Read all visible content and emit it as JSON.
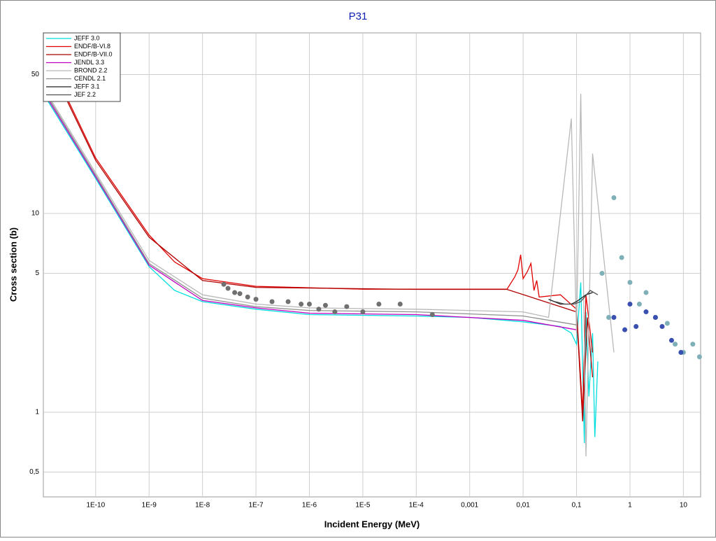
{
  "chart_data": {
    "type": "line",
    "title": "P31",
    "xlabel": "Incident Energy (MeV)",
    "ylabel": "Cross section (b)",
    "xlog": true,
    "ylog": true,
    "grid": true,
    "legend": "upper left",
    "xlim": [
      1.05e-11,
      21
    ],
    "ylim": [
      0.375,
      81
    ],
    "xticks": [
      {
        "value": 1e-10,
        "label": "1E-10"
      },
      {
        "value": 1e-09,
        "label": "1E-9"
      },
      {
        "value": 1e-08,
        "label": "1E-8"
      },
      {
        "value": 1e-07,
        "label": "1E-7"
      },
      {
        "value": 1e-06,
        "label": "1E-6"
      },
      {
        "value": 1e-05,
        "label": "1E-5"
      },
      {
        "value": 0.0001,
        "label": "1E-4"
      },
      {
        "value": 0.001,
        "label": "0,001"
      },
      {
        "value": 0.01,
        "label": "0,01"
      },
      {
        "value": 0.1,
        "label": "0,1"
      },
      1,
      10
    ],
    "yticks": [
      {
        "value": 0.5,
        "label": "0,5"
      },
      1,
      5,
      10,
      50
    ],
    "series": [
      {
        "name": "JEFF 3.0",
        "color": "#00dede",
        "x": [
          1.05e-11,
          1e-10,
          1e-09,
          3e-09,
          1e-08,
          1e-07,
          1e-06,
          0.0001,
          0.001,
          0.01,
          0.05,
          0.08,
          0.1,
          0.12,
          0.14,
          0.15,
          0.17,
          0.2,
          0.22,
          0.25
        ],
        "values": [
          40,
          15,
          5.4,
          4.1,
          3.6,
          3.3,
          3.1,
          3.05,
          3.0,
          2.85,
          2.7,
          2.5,
          2.2,
          4.5,
          0.7,
          3.2,
          1.2,
          2.5,
          0.75,
          1.8
        ]
      },
      {
        "name": "ENDF/B-VI.8",
        "color": "#e00000",
        "x": [
          1.3e-11,
          1e-10,
          1e-09,
          3e-09,
          1e-08,
          1e-07,
          1e-05,
          0.0001,
          0.005,
          0.007,
          0.008,
          0.009,
          0.01,
          0.012,
          0.014,
          0.016,
          0.018,
          0.02,
          0.05,
          0.1,
          0.13,
          0.15,
          0.2
        ],
        "values": [
          60,
          19,
          7.8,
          5.7,
          4.7,
          4.3,
          4.16,
          4.16,
          4.16,
          4.8,
          5.2,
          6.2,
          4.7,
          5.1,
          5.6,
          4.1,
          4.6,
          3.8,
          3.9,
          3.3,
          1.0,
          3.9,
          2.0
        ]
      },
      {
        "name": "ENDF/B-VII.0",
        "color": "#b00000",
        "x": [
          1.3e-11,
          1e-10,
          1e-09,
          1e-08,
          1e-07,
          0.0001,
          0.005,
          0.1,
          0.13,
          0.16,
          0.2
        ],
        "values": [
          58,
          18.5,
          7.6,
          4.6,
          4.25,
          4.15,
          4.15,
          3.2,
          0.9,
          3.0,
          1.5
        ]
      },
      {
        "name": "JENDL 3.3",
        "color": "#c000c0",
        "x": [
          1.05e-11,
          1e-10,
          1e-09,
          1e-08,
          1e-07,
          1e-06,
          0.0001,
          0.01,
          0.1
        ],
        "values": [
          41,
          15.3,
          5.5,
          3.65,
          3.35,
          3.15,
          3.1,
          2.9,
          2.6
        ]
      },
      {
        "name": "BROND 2.2",
        "color": "#b8b8b8",
        "x": [
          1.05e-11,
          1e-10,
          1e-09,
          1e-08,
          1e-07,
          1e-06,
          0.0001,
          0.01,
          0.03,
          0.08,
          0.1,
          0.12,
          0.15,
          0.2,
          0.5
        ],
        "values": [
          43,
          16,
          5.8,
          3.9,
          3.5,
          3.35,
          3.3,
          3.2,
          3.0,
          30,
          2.5,
          40,
          0.6,
          20,
          2.0
        ]
      },
      {
        "name": "CENDL 2.1",
        "color": "#909090",
        "x": [
          1.05e-11,
          1e-10,
          1e-09,
          1e-08,
          1e-07,
          1e-06,
          0.0001,
          0.01,
          0.1
        ],
        "values": [
          42,
          15.6,
          5.6,
          3.75,
          3.4,
          3.25,
          3.2,
          3.05,
          2.75
        ]
      },
      {
        "name": "JEFF 3.1",
        "color": "#202020",
        "x": [
          0.03,
          0.05,
          0.08,
          0.1,
          0.15,
          0.2
        ],
        "values": [
          3.7,
          3.5,
          3.5,
          3.6,
          3.9,
          4.0
        ]
      },
      {
        "name": "JEF 2.2",
        "color": "#505050",
        "x": [
          0.04,
          0.06,
          0.09,
          0.12,
          0.18,
          0.25
        ],
        "values": [
          3.6,
          3.5,
          3.5,
          3.6,
          4.1,
          3.9
        ]
      }
    ],
    "markers": [
      {
        "color": "#707070",
        "x": [
          2.5e-08,
          3e-08,
          4e-08,
          5e-08,
          7e-08,
          1e-07,
          2e-07,
          4e-07,
          7e-07,
          1e-06,
          1.5e-06,
          2e-06,
          3e-06,
          5e-06,
          1e-05,
          2e-05,
          5e-05,
          0.0002
        ],
        "values": [
          4.4,
          4.2,
          4.0,
          3.95,
          3.8,
          3.7,
          3.6,
          3.6,
          3.5,
          3.5,
          3.3,
          3.45,
          3.2,
          3.4,
          3.2,
          3.5,
          3.5,
          3.1
        ]
      },
      {
        "color": "#7fb0b8",
        "x": [
          0.3,
          0.4,
          0.5,
          0.7,
          1,
          1.5,
          2,
          3,
          5,
          7,
          10,
          15,
          20
        ],
        "values": [
          5,
          3,
          12,
          6,
          4.5,
          3.5,
          4,
          3,
          2.8,
          2.2,
          2,
          2.2,
          1.9
        ]
      },
      {
        "color": "#3a50b0",
        "x": [
          0.5,
          0.8,
          1,
          1.3,
          2,
          3,
          4,
          6,
          9
        ],
        "values": [
          3,
          2.6,
          3.5,
          2.7,
          3.2,
          3,
          2.7,
          2.3,
          2
        ]
      }
    ]
  }
}
